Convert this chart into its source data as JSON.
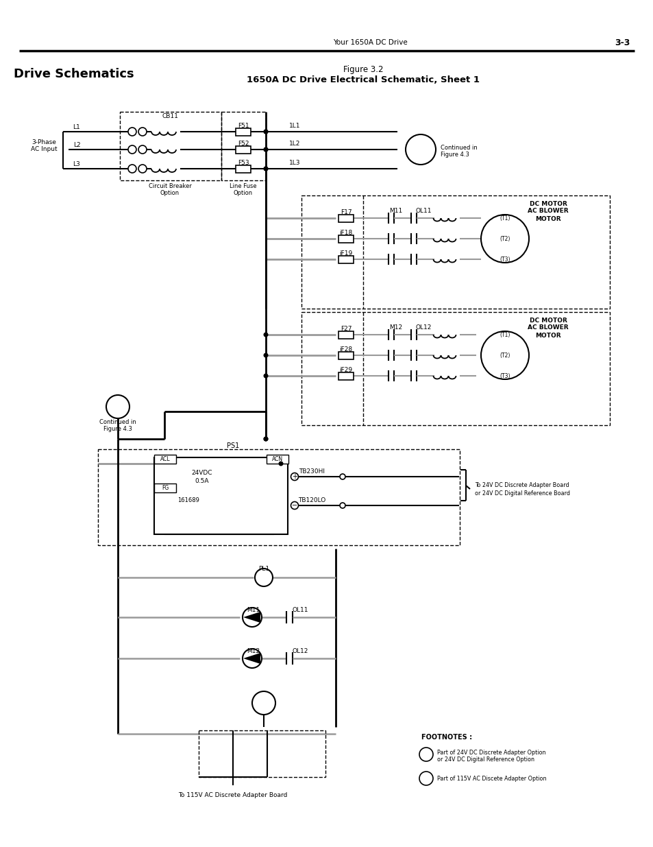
{
  "title_left": "Drive Schematics",
  "title_fig": "Figure 3.2",
  "title_sub": "1650A DC Drive Electrical Schematic, Sheet 1",
  "header_center": "Your 1650A DC Drive",
  "header_page": "3-3",
  "bg_color": "#ffffff",
  "lc": "#000000",
  "glc": "#aaaaaa",
  "footnote_title": "FOOTNOTES :",
  "footnote1a": "Part of 24V DC Discrete Adapter Option",
  "footnote1b": "or 24V DC Digital Reference Option",
  "footnote2": "Part of 115V AC Discete Adapter Option"
}
